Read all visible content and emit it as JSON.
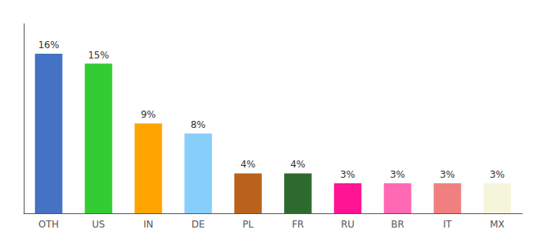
{
  "chart_data": {
    "type": "bar",
    "categories": [
      "OTH",
      "US",
      "IN",
      "DE",
      "PL",
      "FR",
      "RU",
      "BR",
      "IT",
      "MX"
    ],
    "values": [
      16,
      15,
      9,
      8,
      4,
      4,
      3,
      3,
      3,
      3
    ],
    "value_labels": [
      "16%",
      "15%",
      "9%",
      "8%",
      "4%",
      "4%",
      "3%",
      "3%",
      "3%",
      "3%"
    ],
    "colors": [
      "#4472C4",
      "#33CC33",
      "#FFA500",
      "#87CEFA",
      "#B8621B",
      "#2D6A2D",
      "#FF1493",
      "#FF69B4",
      "#F08080",
      "#F5F5DC"
    ],
    "data_labels": true,
    "ylim": [
      0,
      19
    ],
    "grid": false,
    "tick_labels": "x"
  }
}
